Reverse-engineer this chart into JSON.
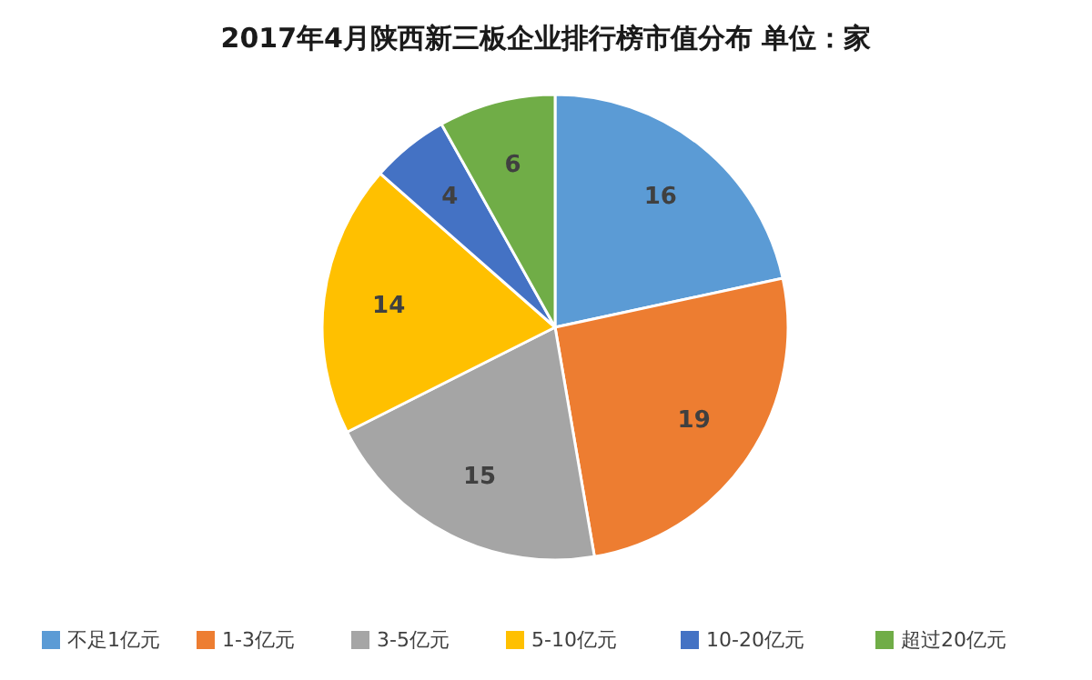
{
  "chart_data": {
    "type": "pie",
    "title": "2017年4月陕西新三板企业排行榜市值分布  单位：家",
    "categories": [
      "不足1亿元",
      "1-3亿元",
      "3-5亿元",
      "5-10亿元",
      "10-20亿元",
      "超过20亿元"
    ],
    "values": [
      16,
      19,
      15,
      14,
      4,
      6
    ],
    "colors": [
      "#5b9bd5",
      "#ed7d31",
      "#a5a5a5",
      "#ffc000",
      "#4472c4",
      "#70ad47"
    ],
    "data_labels": true,
    "legend": "bottom"
  }
}
